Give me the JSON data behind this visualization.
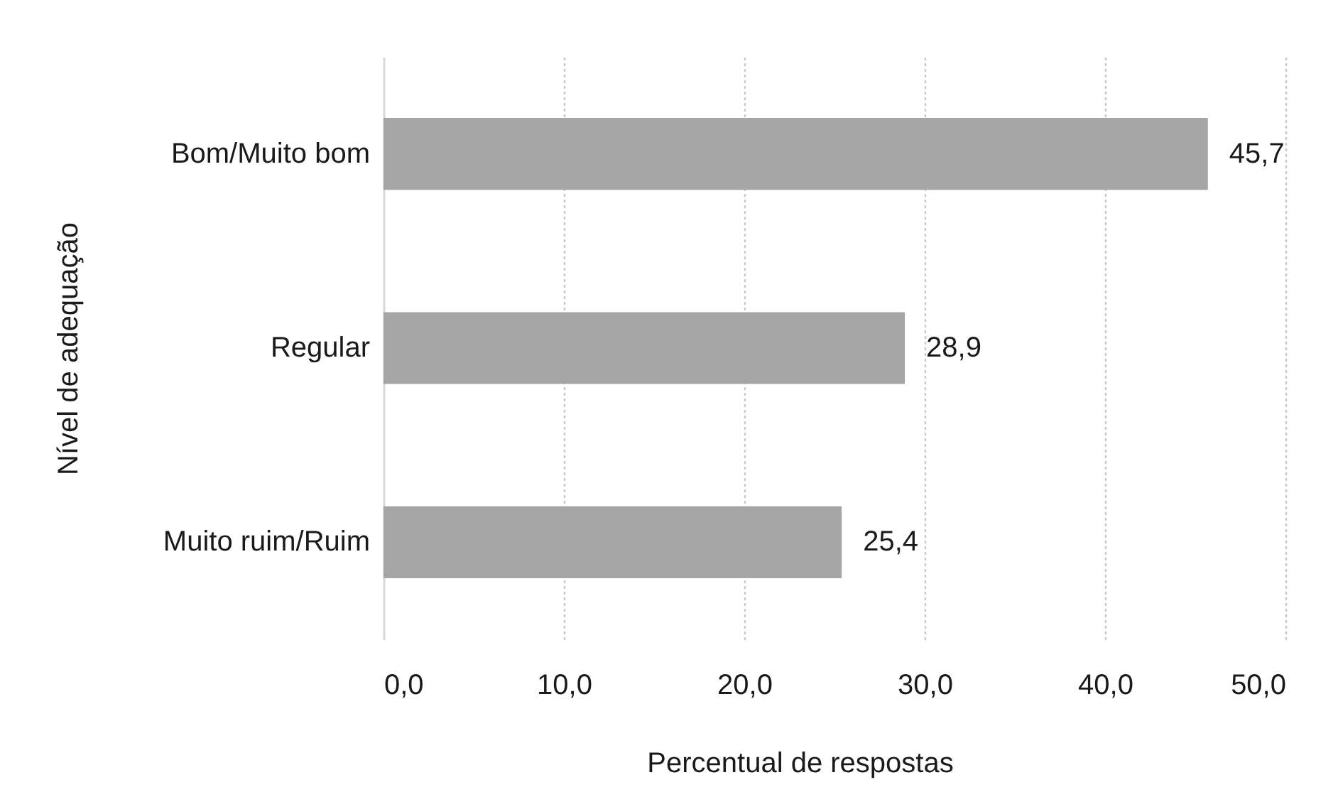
{
  "chart_data": {
    "type": "bar",
    "orientation": "horizontal",
    "xlabel": "Percentual de respostas",
    "ylabel": "Nível de adequação",
    "categories": [
      "Bom/Muito bom",
      "Regular",
      "Muito ruim/Ruim"
    ],
    "values": [
      45.7,
      28.9,
      25.4
    ],
    "color": "#a5a5a5",
    "value_labels": [
      "45,7",
      "28,9",
      "25,4"
    ],
    "xlim": [
      0,
      50
    ],
    "xticks": [
      {
        "value": 0,
        "label": "0,0"
      },
      {
        "value": 10,
        "label": "10,0"
      },
      {
        "value": 20,
        "label": "20,0"
      },
      {
        "value": 30,
        "label": "30,0"
      },
      {
        "value": 40,
        "label": "40,0"
      },
      {
        "value": 50,
        "label": "50,0"
      }
    ],
    "grid": "x"
  }
}
